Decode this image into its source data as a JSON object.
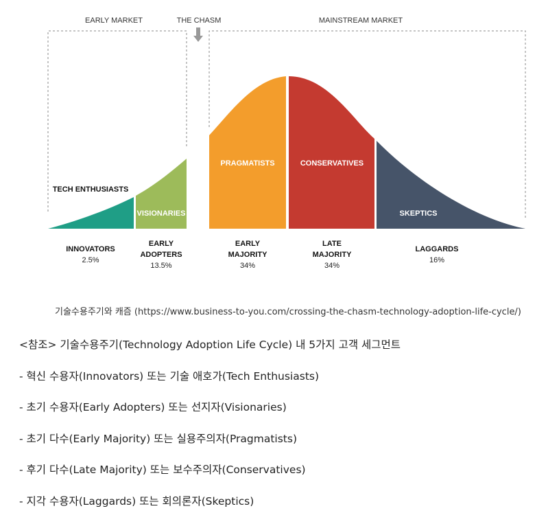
{
  "diagram": {
    "headers": {
      "early_market": "EARLY MARKET",
      "the_chasm": "THE CHASM",
      "mainstream_market": "MAINSTREAM MARKET"
    },
    "segments": [
      {
        "id": "innovators",
        "inner_label": "",
        "side_label": "TECH ENTHUSIASTS",
        "name_lines": [
          "INNOVATORS"
        ],
        "percent": "2.5%",
        "share": 2.5,
        "color": "#1f9e86"
      },
      {
        "id": "early-adopters",
        "inner_label": "VISIONARIES",
        "side_label": "",
        "name_lines": [
          "EARLY",
          "ADOPTERS"
        ],
        "percent": "13.5%",
        "share": 13.5,
        "color": "#9dbb5a"
      },
      {
        "id": "early-majority",
        "inner_label": "PRAGMATISTS",
        "side_label": "",
        "name_lines": [
          "EARLY",
          "MAJORITY"
        ],
        "percent": "34%",
        "share": 34,
        "color": "#f39d2c"
      },
      {
        "id": "late-majority",
        "inner_label": "CONSERVATIVES",
        "side_label": "",
        "name_lines": [
          "LATE",
          "MAJORITY"
        ],
        "percent": "34%",
        "share": 34,
        "color": "#c43a30"
      },
      {
        "id": "laggards",
        "inner_label": "SKEPTICS",
        "side_label": "",
        "name_lines": [
          "LAGGARDS"
        ],
        "percent": "16%",
        "share": 16,
        "color": "#465469"
      }
    ],
    "arrow_color": "#999999",
    "border_color": "#888888"
  },
  "caption": "기술수용주기와 캐즘 (https://www.business-to-you.com/crossing-the-chasm-technology-adoption-life-cycle/)",
  "notes": [
    "<참조> 기술수용주기(Technology Adoption Life Cycle) 내 5가지 고객 세그먼트",
    "- 혁신 수용자(Innovators) 또는 기술 애호가(Tech Enthusiasts)",
    "- 초기 수용자(Early Adopters) 또는 선지자(Visionaries)",
    "- 초기 다수(Early Majority) 또는 실용주의자(Pragmatists)",
    "- 후기 다수(Late Majority) 또는 보수주의자(Conservatives)",
    "- 지각 수용자(Laggards) 또는 회의론자(Skeptics)"
  ]
}
